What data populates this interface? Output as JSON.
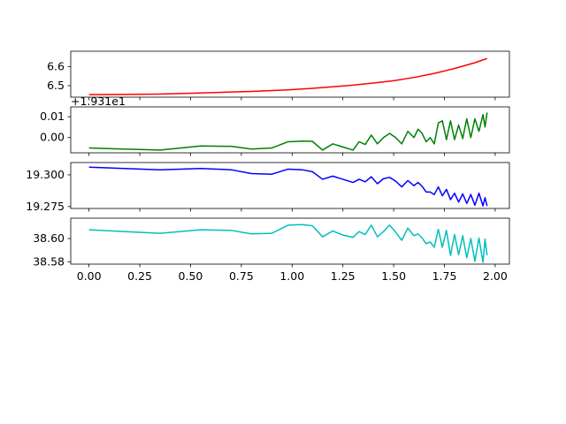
{
  "chart_data": [
    {
      "type": "line",
      "color": "#ff0000",
      "offset_label": "",
      "ylim": [
        6.44,
        6.68
      ],
      "yticks": [
        6.5,
        6.6
      ],
      "ytick_labels": [
        "6.5",
        "6.6"
      ],
      "xlim": [
        -0.09,
        2.07
      ],
      "x": [
        0.0,
        0.35,
        0.55,
        0.8,
        0.98,
        1.1,
        1.2,
        1.3,
        1.4,
        1.5,
        1.6,
        1.7,
        1.8,
        1.9,
        1.96
      ],
      "values": [
        6.453,
        6.456,
        6.462,
        6.47,
        6.478,
        6.486,
        6.494,
        6.503,
        6.514,
        6.526,
        6.543,
        6.564,
        6.59,
        6.62,
        6.642
      ]
    },
    {
      "type": "line",
      "color": "#008000",
      "offset_label": "+1.931e1",
      "ylim": [
        -0.0073,
        0.0147
      ],
      "yticks": [
        0.0,
        0.01
      ],
      "ytick_labels": [
        "0.00",
        "0.01"
      ],
      "xlim": [
        -0.09,
        2.07
      ],
      "x": [
        0.0,
        0.35,
        0.55,
        0.7,
        0.8,
        0.9,
        0.98,
        1.05,
        1.1,
        1.15,
        1.2,
        1.25,
        1.3,
        1.33,
        1.36,
        1.39,
        1.42,
        1.45,
        1.48,
        1.51,
        1.54,
        1.57,
        1.6,
        1.62,
        1.64,
        1.66,
        1.68,
        1.7,
        1.72,
        1.74,
        1.76,
        1.78,
        1.8,
        1.82,
        1.84,
        1.86,
        1.88,
        1.9,
        1.92,
        1.94,
        1.95,
        1.96
      ],
      "values": [
        -0.005,
        -0.006,
        -0.004,
        -0.0042,
        -0.0055,
        -0.005,
        -0.002,
        -0.0017,
        -0.0018,
        -0.006,
        -0.003,
        -0.0045,
        -0.006,
        -0.002,
        -0.0033,
        0.0012,
        -0.003,
        0.0,
        0.002,
        0.0,
        -0.003,
        0.003,
        0.0,
        0.004,
        0.002,
        -0.002,
        0.0,
        -0.003,
        0.007,
        0.008,
        -0.001,
        0.008,
        -0.001,
        0.006,
        -0.0005,
        0.009,
        0.0,
        0.009,
        0.003,
        0.011,
        0.005,
        0.012
      ]
    },
    {
      "type": "line",
      "color": "#0000ff",
      "offset_label": "",
      "ylim": [
        19.2735,
        19.3097
      ],
      "yticks": [
        19.275,
        19.3
      ],
      "ytick_labels": [
        "19.275",
        "19.300"
      ],
      "xlim": [
        -0.09,
        2.07
      ],
      "x": [
        0.0,
        0.35,
        0.55,
        0.7,
        0.8,
        0.9,
        0.98,
        1.05,
        1.1,
        1.15,
        1.2,
        1.25,
        1.3,
        1.33,
        1.36,
        1.39,
        1.42,
        1.45,
        1.48,
        1.51,
        1.54,
        1.57,
        1.6,
        1.62,
        1.64,
        1.66,
        1.68,
        1.7,
        1.72,
        1.74,
        1.76,
        1.78,
        1.8,
        1.82,
        1.84,
        1.86,
        1.88,
        1.9,
        1.92,
        1.94,
        1.95,
        1.96
      ],
      "values": [
        19.306,
        19.304,
        19.305,
        19.304,
        19.301,
        19.3005,
        19.3045,
        19.304,
        19.3025,
        19.2965,
        19.299,
        19.2965,
        19.294,
        19.2965,
        19.2945,
        19.2985,
        19.293,
        19.297,
        19.298,
        19.295,
        19.2905,
        19.2955,
        19.2915,
        19.294,
        19.291,
        19.2865,
        19.2865,
        19.2845,
        19.2905,
        19.2835,
        19.2885,
        19.2805,
        19.2855,
        19.2785,
        19.285,
        19.2775,
        19.2845,
        19.276,
        19.2855,
        19.2755,
        19.282,
        19.2755
      ]
    },
    {
      "type": "line",
      "color": "#00bfbf",
      "offset_label": "",
      "ylim": [
        38.578,
        38.6175
      ],
      "yticks": [
        38.58,
        38.6
      ],
      "ytick_labels": [
        "38.58",
        "38.60"
      ],
      "xlim": [
        -0.09,
        2.07
      ],
      "x": [
        0.0,
        0.35,
        0.55,
        0.7,
        0.8,
        0.9,
        0.98,
        1.05,
        1.1,
        1.15,
        1.2,
        1.25,
        1.3,
        1.33,
        1.36,
        1.39,
        1.42,
        1.45,
        1.48,
        1.51,
        1.54,
        1.57,
        1.6,
        1.62,
        1.64,
        1.66,
        1.68,
        1.7,
        1.72,
        1.74,
        1.76,
        1.78,
        1.8,
        1.82,
        1.84,
        1.86,
        1.88,
        1.9,
        1.92,
        1.94,
        1.95,
        1.96
      ],
      "values": [
        38.6075,
        38.6045,
        38.6075,
        38.607,
        38.604,
        38.6045,
        38.6115,
        38.612,
        38.611,
        38.6015,
        38.6065,
        38.603,
        38.601,
        38.606,
        38.6035,
        38.6115,
        38.6015,
        38.606,
        38.6115,
        38.6055,
        38.5985,
        38.609,
        38.6025,
        38.604,
        38.6005,
        38.5955,
        38.597,
        38.5925,
        38.608,
        38.5925,
        38.607,
        38.5855,
        38.6035,
        38.586,
        38.6025,
        38.5835,
        38.6,
        38.5805,
        38.6005,
        38.5795,
        38.5995,
        38.5855
      ]
    }
  ],
  "x_axis": {
    "ticks": [
      0.0,
      0.25,
      0.5,
      0.75,
      1.0,
      1.25,
      1.5,
      1.75,
      2.0
    ],
    "tick_labels": [
      "0.00",
      "0.25",
      "0.50",
      "0.75",
      "1.00",
      "1.25",
      "1.50",
      "1.75",
      "2.00"
    ]
  }
}
